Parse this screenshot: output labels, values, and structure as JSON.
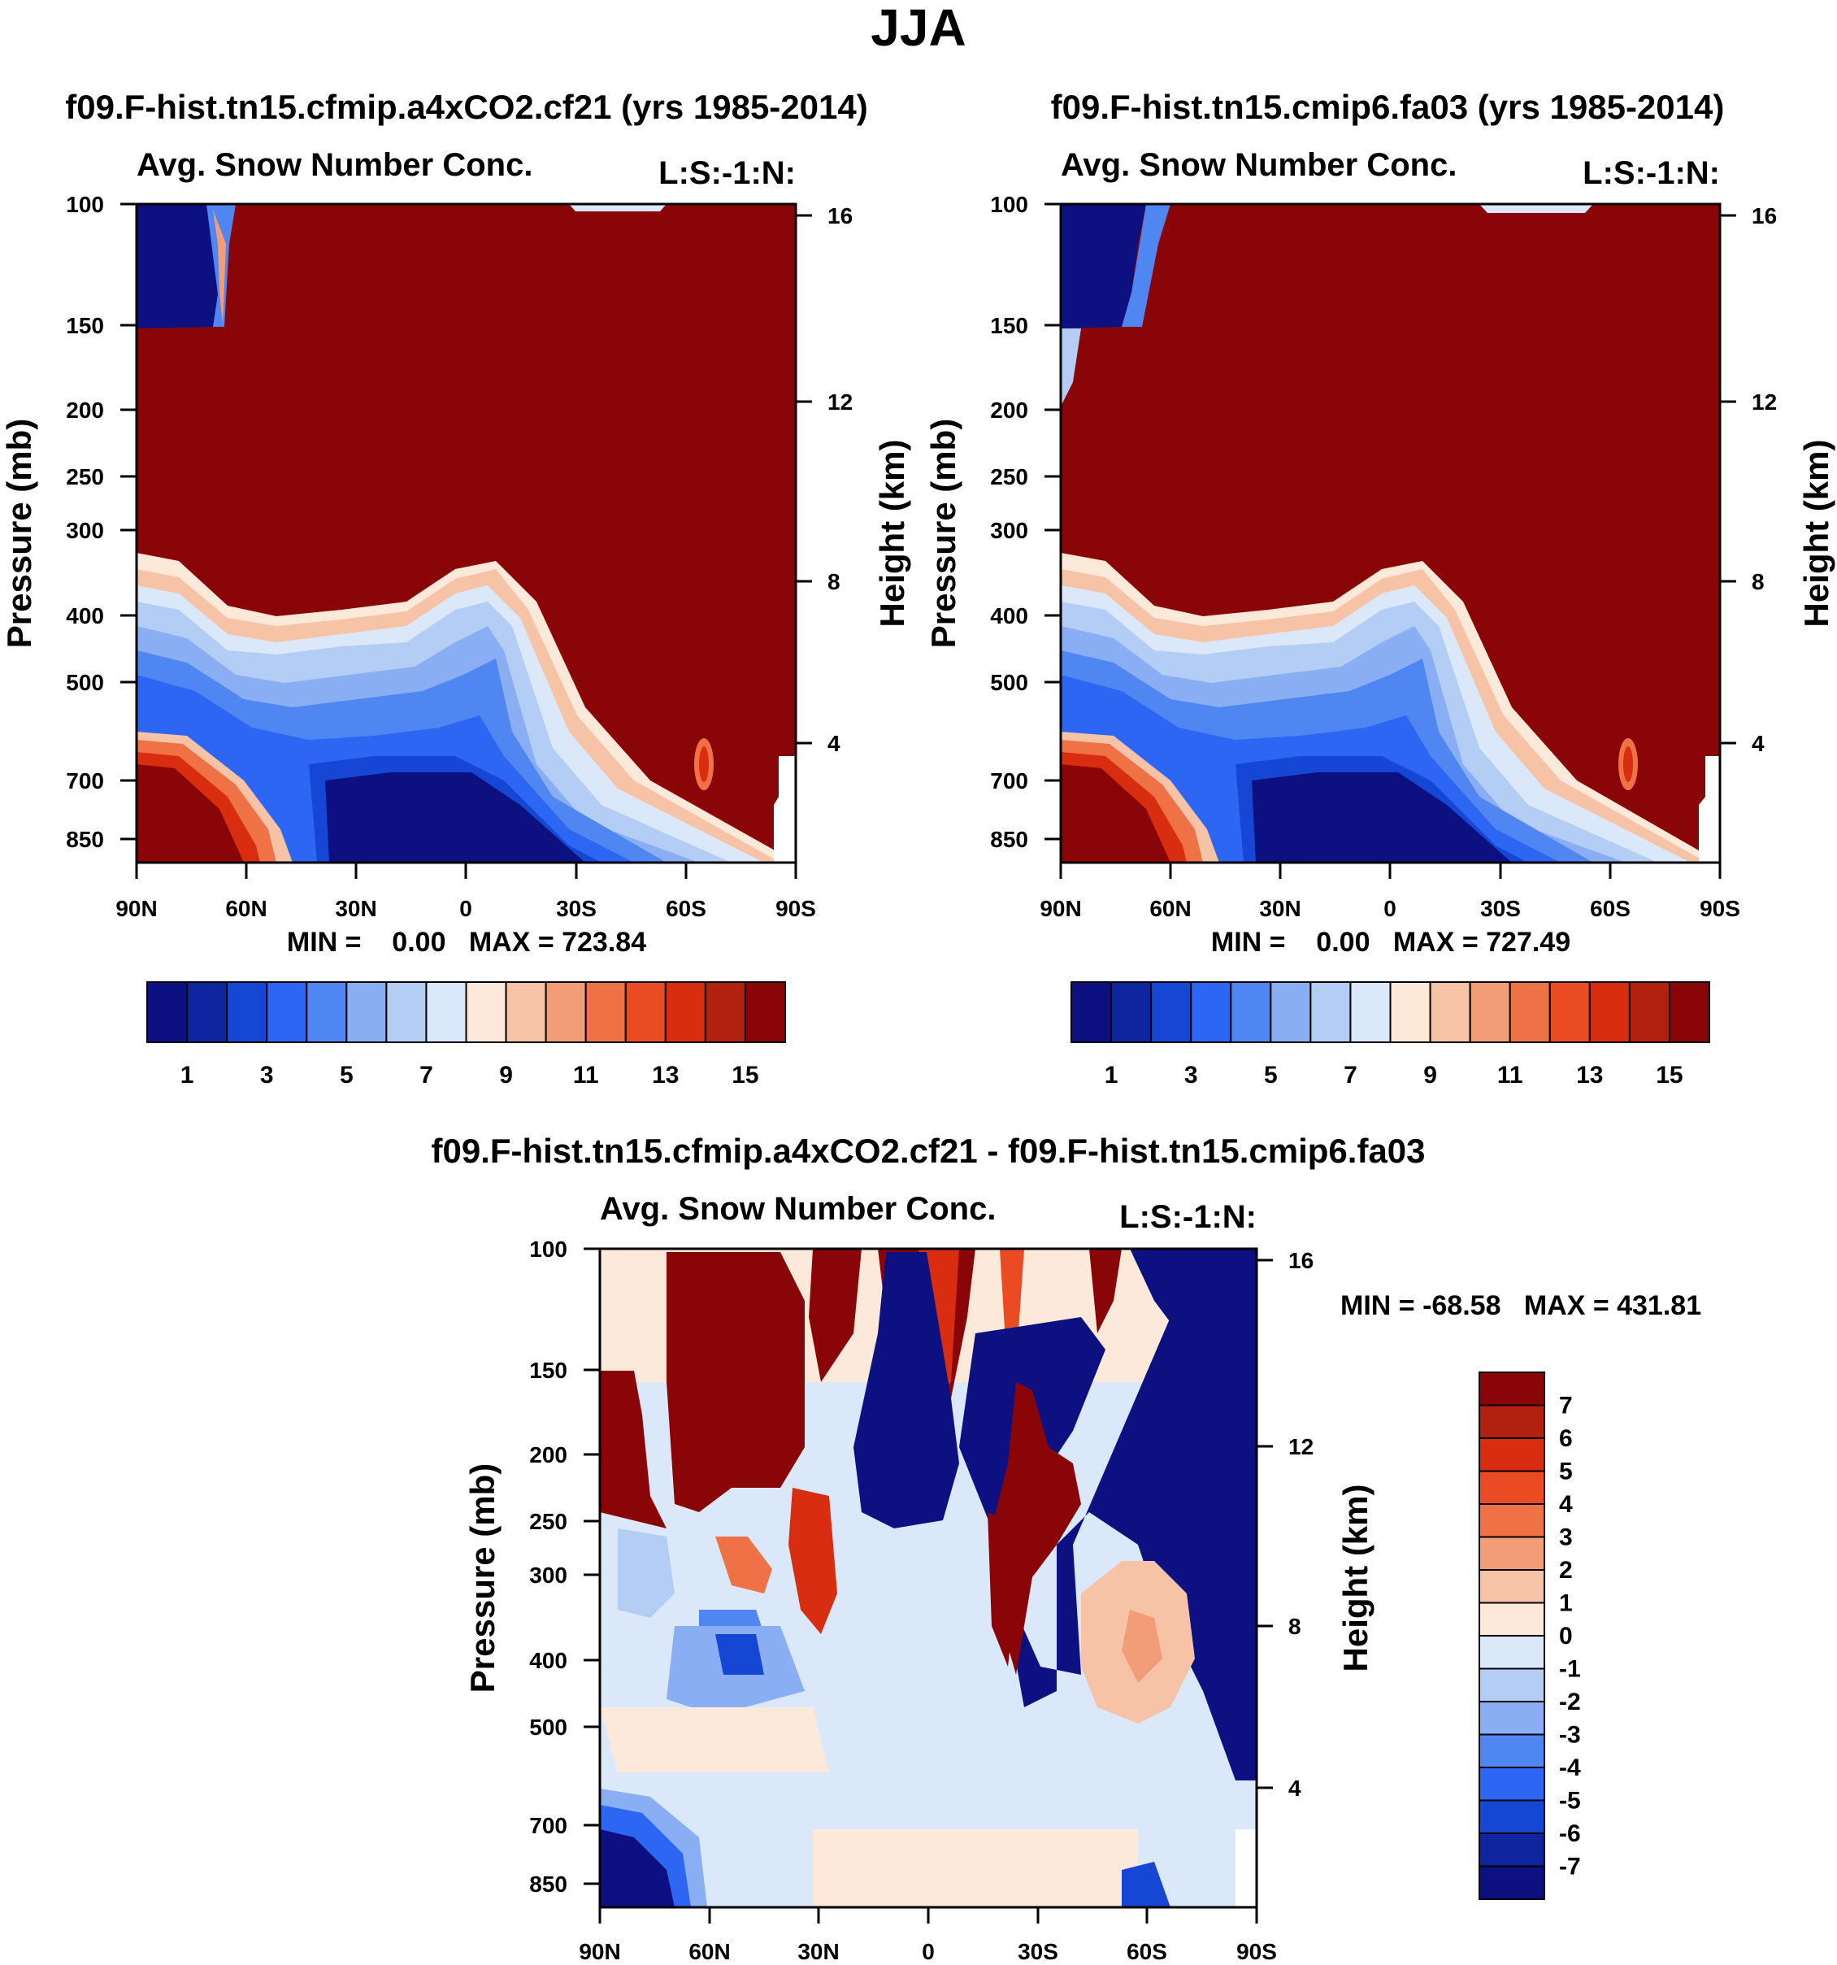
{
  "figure": {
    "season_title": "JJA"
  },
  "colors": {
    "absolute_palette": [
      "#0d1080",
      "#0e259f",
      "#1647d4",
      "#2d66f3",
      "#4f86f2",
      "#8aaef4",
      "#b4cdf5",
      "#dbe8fa",
      "#fde9da",
      "#f7c3a7",
      "#f39d78",
      "#ef7246",
      "#ea4b22",
      "#d82d10",
      "#b22110",
      "#8a0507"
    ],
    "difference_palette": [
      "#0d1080",
      "#0e259f",
      "#1647d4",
      "#2d66f3",
      "#4f86f2",
      "#8aaef4",
      "#b4cdf5",
      "#dbe8fa",
      "#fde9da",
      "#f7c3a7",
      "#f39d78",
      "#ef7246",
      "#ea4b22",
      "#d82d10",
      "#b22110",
      "#8a0507"
    ]
  },
  "chart_data": [
    {
      "type": "heatmap",
      "panel_title": "f09.F-hist.tn15.cfmip.a4xCO2.cf21 (yrs 1985-2014)",
      "title": "Avg. Snow Number Conc.",
      "right_annotation": "L:S:-1:N:",
      "xlabel": "",
      "ylabel": "Pressure (mb)",
      "y2label": "Height (km)",
      "x_ticks": [
        "90N",
        "60N",
        "30N",
        "0",
        "30S",
        "60S",
        "90S"
      ],
      "y_ticks": [
        "100",
        "150",
        "200",
        "250",
        "300",
        "400",
        "500",
        "700",
        "850"
      ],
      "y2_ticks": [
        "16",
        "12",
        "8",
        "4"
      ],
      "ylim": [
        100,
        1000
      ],
      "stats": "MIN =    0.00   MAX = 723.84",
      "min": 0.0,
      "max": 723.84,
      "colorbar_labels": [
        "1",
        "3",
        "5",
        "7",
        "9",
        "11",
        "13",
        "15"
      ],
      "levels": 16
    },
    {
      "type": "heatmap",
      "panel_title": "f09.F-hist.tn15.cmip6.fa03 (yrs 1985-2014)",
      "title": "Avg. Snow Number Conc.",
      "right_annotation": "L:S:-1:N:",
      "xlabel": "",
      "ylabel": "Pressure (mb)",
      "y2label": "Height (km)",
      "x_ticks": [
        "90N",
        "60N",
        "30N",
        "0",
        "30S",
        "60S",
        "90S"
      ],
      "y_ticks": [
        "100",
        "150",
        "200",
        "250",
        "300",
        "400",
        "500",
        "700",
        "850"
      ],
      "y2_ticks": [
        "16",
        "12",
        "8",
        "4"
      ],
      "ylim": [
        100,
        1000
      ],
      "stats": "MIN =    0.00   MAX = 727.49",
      "min": 0.0,
      "max": 727.49,
      "colorbar_labels": [
        "1",
        "3",
        "5",
        "7",
        "9",
        "11",
        "13",
        "15"
      ],
      "levels": 16
    },
    {
      "type": "heatmap",
      "panel_title": "f09.F-hist.tn15.cfmip.a4xCO2.cf21 - f09.F-hist.tn15.cmip6.fa03",
      "title": "Avg. Snow Number Conc.",
      "right_annotation": "L:S:-1:N:",
      "xlabel": "",
      "ylabel": "Pressure (mb)",
      "y2label": "Height (km)",
      "x_ticks": [
        "90N",
        "60N",
        "30N",
        "0",
        "30S",
        "60S",
        "90S"
      ],
      "y_ticks": [
        "100",
        "150",
        "200",
        "250",
        "300",
        "400",
        "500",
        "700",
        "850"
      ],
      "y2_ticks": [
        "16",
        "12",
        "8",
        "4"
      ],
      "ylim": [
        100,
        1000
      ],
      "stats": "MIN = -68.58   MAX = 431.81",
      "min": -68.58,
      "max": 431.81,
      "colorbar_labels": [
        "7",
        "6",
        "5",
        "4",
        "3",
        "2",
        "1",
        "0",
        "-1",
        "-2",
        "-3",
        "-4",
        "-5",
        "-6",
        "-7"
      ],
      "levels": 16
    }
  ]
}
